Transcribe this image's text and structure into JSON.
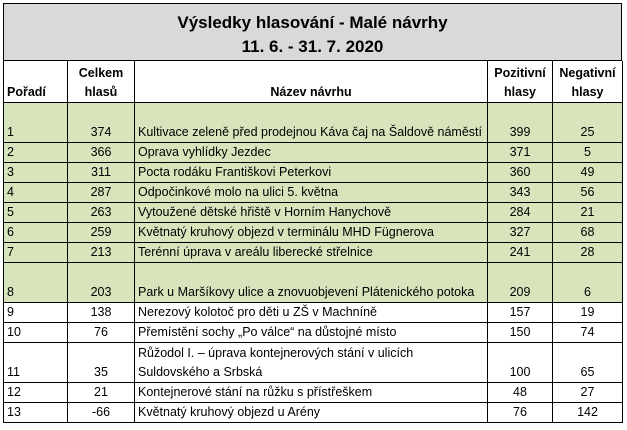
{
  "title": "Výsledky hlasování  - Malé návrhy",
  "period": "11. 6. - 31. 7. 2020",
  "columns": {
    "rank": "Pořadí",
    "total": "Celkem hlasů",
    "name": "Název návrhu",
    "positive": "Pozitivní hlasy",
    "negative": "Negativní hlasy"
  },
  "colors": {
    "highlight": "#d8e4bc",
    "header_bg": "#d9d9d9"
  },
  "rows": [
    {
      "rank": "1",
      "total": "374",
      "name": "Kultivace zeleně před prodejnou Káva čaj na Šaldově náměstí",
      "positive": "399",
      "negative": "25",
      "highlight": true,
      "tall": true
    },
    {
      "rank": "2",
      "total": "366",
      "name": "Oprava vyhlídky Jezdec",
      "positive": "371",
      "negative": "5",
      "highlight": true,
      "tall": false
    },
    {
      "rank": "3",
      "total": "311",
      "name": " Pocta rodáku Františkovi Peterkovi",
      "positive": "360",
      "negative": "49",
      "highlight": true,
      "tall": false
    },
    {
      "rank": "4",
      "total": "287",
      "name": " Odpočinkové molo na ulici 5. května",
      "positive": "343",
      "negative": "56",
      "highlight": true,
      "tall": false
    },
    {
      "rank": "5",
      "total": "263",
      "name": "Vytoužené dětské hřiště v Horním Hanychově",
      "positive": "284",
      "negative": "21",
      "highlight": true,
      "tall": false
    },
    {
      "rank": "6",
      "total": "259",
      "name": "Květnatý kruhový objezd v terminálu MHD Fügnerova",
      "positive": "327",
      "negative": "68",
      "highlight": true,
      "tall": false
    },
    {
      "rank": "7",
      "total": "213",
      "name": "Terénní úprava v areálu liberecké střelnice",
      "positive": "241",
      "negative": "28",
      "highlight": true,
      "tall": false
    },
    {
      "rank": "8",
      "total": "203",
      "name": "Park u Maršíkovy ulice a znovuobjevení Plátenického potoka",
      "positive": "209",
      "negative": "6",
      "highlight": true,
      "tall": true
    },
    {
      "rank": "9",
      "total": "138",
      "name": "Nerezový kolotoč pro děti u ZŠ v Machníně",
      "positive": "157",
      "negative": "19",
      "highlight": false,
      "tall": false
    },
    {
      "rank": "10",
      "total": "76",
      "name": "Přemístění sochy „Po válce“ na důstojné místo",
      "positive": "150",
      "negative": "74",
      "highlight": false,
      "tall": false
    },
    {
      "rank": "11",
      "total": "35",
      "name": "Růžodol I. – úprava kontejnerových stání v ulicích Suldovského a Srbská",
      "positive": "100",
      "negative": "65",
      "highlight": false,
      "tall": true
    },
    {
      "rank": "12",
      "total": "21",
      "name": "Kontejnerové stání na růžku s přístřeškem",
      "positive": "48",
      "negative": "27",
      "highlight": false,
      "tall": false
    },
    {
      "rank": "13",
      "total": "-66",
      "name": "Květnatý kruhový objezd u Arény",
      "positive": "76",
      "negative": "142",
      "highlight": false,
      "tall": false
    }
  ]
}
